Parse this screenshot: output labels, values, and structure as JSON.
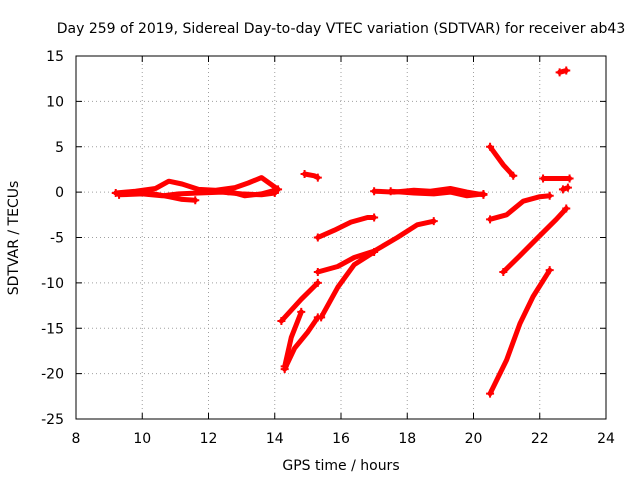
{
  "chart_data": {
    "type": "scatter",
    "title": "Day 259 of 2019, Sidereal Day-to-day VTEC variation (SDTVAR) for receiver ab43",
    "xlabel": "GPS time / hours",
    "ylabel": "SDTVAR / TECUs",
    "xlim": [
      8,
      24
    ],
    "ylim": [
      -25,
      15
    ],
    "xticks": [
      "8",
      "10",
      "12",
      "14",
      "16",
      "18",
      "20",
      "22",
      "24"
    ],
    "yticks": [
      "15",
      "10",
      "5",
      "0",
      "-5",
      "-10",
      "-15",
      "-20",
      "-25"
    ],
    "grid": true,
    "legend": "none",
    "marker_color": "#ff0000",
    "segments": [
      {
        "x": [
          9.2,
          9.8,
          10.4,
          10.8,
          11.2,
          11.7,
          12.2,
          12.8,
          13.2,
          13.6,
          14.1
        ],
        "y": [
          -0.1,
          0.1,
          0.4,
          1.2,
          0.9,
          0.3,
          0.2,
          0.5,
          1.0,
          1.6,
          0.3
        ]
      },
      {
        "x": [
          9.3,
          10.0,
          10.6,
          11.1,
          11.7,
          12.4,
          13.0,
          13.6,
          14.0
        ],
        "y": [
          -0.3,
          -0.2,
          -0.4,
          -0.2,
          -0.1,
          0.0,
          -0.2,
          -0.3,
          -0.1
        ]
      },
      {
        "x": [
          10.2,
          10.8,
          11.2,
          11.6
        ],
        "y": [
          -0.1,
          -0.5,
          -0.8,
          -0.9
        ]
      },
      {
        "x": [
          12.6,
          13.1,
          13.6,
          14.0
        ],
        "y": [
          0.1,
          -0.4,
          -0.2,
          0.2
        ]
      },
      {
        "x": [
          14.9,
          15.2,
          15.3
        ],
        "y": [
          2.0,
          1.8,
          1.6
        ]
      },
      {
        "x": [
          15.3,
          15.8,
          16.3,
          16.8,
          17.0
        ],
        "y": [
          -5.0,
          -4.2,
          -3.3,
          -2.8,
          -2.8
        ]
      },
      {
        "x": [
          14.2,
          14.8,
          15.3
        ],
        "y": [
          -14.2,
          -11.8,
          -10.0
        ]
      },
      {
        "x": [
          14.3,
          14.6,
          15.0,
          15.3
        ],
        "y": [
          -19.5,
          -17.2,
          -15.4,
          -13.8
        ]
      },
      {
        "x": [
          14.3,
          14.5,
          14.8
        ],
        "y": [
          -19.2,
          -16.0,
          -13.2
        ]
      },
      {
        "x": [
          15.3,
          15.9,
          16.4,
          17.0,
          17.7,
          18.3,
          18.8
        ],
        "y": [
          -8.8,
          -8.2,
          -7.2,
          -6.5,
          -5.0,
          -3.6,
          -3.2
        ]
      },
      {
        "x": [
          15.4,
          15.9,
          16.4,
          17.0
        ],
        "y": [
          -13.8,
          -10.5,
          -8.0,
          -6.6
        ]
      },
      {
        "x": [
          17.0,
          17.6,
          18.2,
          18.7,
          19.3,
          19.8,
          20.3
        ],
        "y": [
          0.1,
          0.0,
          0.2,
          0.1,
          0.4,
          0.0,
          -0.3
        ]
      },
      {
        "x": [
          17.5,
          18.2,
          18.8,
          19.3,
          19.8,
          20.3
        ],
        "y": [
          0.1,
          -0.1,
          -0.2,
          0.0,
          -0.4,
          -0.2
        ]
      },
      {
        "x": [
          20.5,
          20.9,
          21.2
        ],
        "y": [
          5.0,
          3.0,
          1.8
        ]
      },
      {
        "x": [
          20.5,
          21.0,
          21.5,
          22.0,
          22.3
        ],
        "y": [
          -3.0,
          -2.5,
          -1.0,
          -0.5,
          -0.4
        ]
      },
      {
        "x": [
          22.1,
          22.5,
          22.9
        ],
        "y": [
          1.5,
          1.5,
          1.5
        ]
      },
      {
        "x": [
          22.6,
          22.8
        ],
        "y": [
          13.2,
          13.4
        ]
      },
      {
        "x": [
          22.7,
          22.85
        ],
        "y": [
          0.3,
          0.5
        ]
      },
      {
        "x": [
          20.9,
          21.4,
          22.0,
          22.5,
          22.8
        ],
        "y": [
          -8.8,
          -7.0,
          -4.8,
          -3.0,
          -1.8
        ]
      },
      {
        "x": [
          20.5,
          21.0,
          21.4,
          21.8,
          22.3
        ],
        "y": [
          -22.2,
          -18.5,
          -14.5,
          -11.5,
          -8.6
        ]
      }
    ]
  }
}
